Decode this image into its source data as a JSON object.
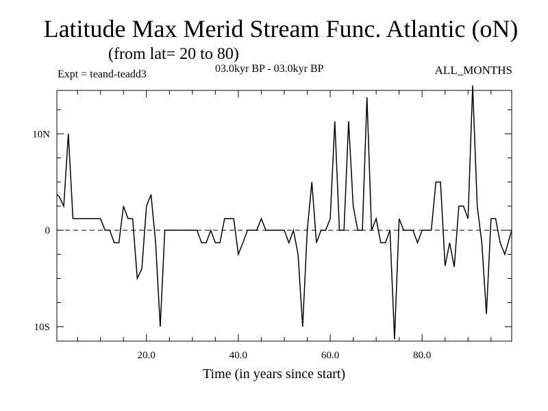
{
  "chart_data": {
    "type": "line",
    "title": "Latitude Max Merid Stream Func. Atlantic (oN)",
    "subtitle": "(from lat= 20 to 80)",
    "annotations": {
      "experiment": "Expt = teand-teadd3",
      "period": "03.0kyr BP - 03.0kyr BP",
      "months": "ALL_MONTHS"
    },
    "xlabel": "Time (in years since start)",
    "ylabel": "",
    "xlim": [
      0.5,
      99.5
    ],
    "ylim": [
      -11.5,
      14.5
    ],
    "xticks": [
      {
        "value": 20,
        "label": "20.0"
      },
      {
        "value": 40,
        "label": "40.0"
      },
      {
        "value": 60,
        "label": "60.0"
      },
      {
        "value": 80,
        "label": "80.0"
      }
    ],
    "yticks": [
      {
        "value": 10,
        "label": "10N"
      },
      {
        "value": 0,
        "label": "0"
      },
      {
        "value": -10,
        "label": "10S"
      }
    ],
    "zero_line": "dashed",
    "series": [
      {
        "name": "Latitude Max Merid Stream Func",
        "x": [
          0.5,
          1,
          2,
          3,
          4,
          5,
          6,
          7,
          8,
          9,
          10,
          11,
          12,
          13,
          14,
          15,
          16,
          17,
          18,
          19,
          20,
          21,
          22,
          23,
          24,
          25,
          26,
          27,
          28,
          29,
          30,
          31,
          32,
          33,
          34,
          35,
          36,
          37,
          38,
          39,
          40,
          41,
          42,
          43,
          44,
          45,
          46,
          47,
          48,
          49,
          50,
          51,
          52,
          53,
          54,
          55,
          56,
          57,
          58,
          59,
          60,
          61,
          62,
          63,
          64,
          65,
          66,
          67,
          68,
          69,
          70,
          71,
          72,
          73,
          74,
          75,
          76,
          77,
          78,
          79,
          80,
          81,
          82,
          83,
          84,
          85,
          86,
          87,
          88,
          89,
          90,
          91,
          92,
          93,
          94,
          95,
          96,
          97,
          98,
          99.5
        ],
        "values": [
          3.7,
          3.5,
          2.5,
          10,
          1.2,
          1.2,
          1.2,
          1.2,
          1.2,
          1.2,
          1.2,
          0,
          0,
          -1.3,
          -1.3,
          2.5,
          1.2,
          1.2,
          -5,
          -4,
          2.5,
          3.7,
          -1.3,
          -10,
          0,
          0,
          0,
          0,
          0,
          0,
          0,
          0,
          -1.3,
          -1.3,
          0,
          -1.3,
          -1.3,
          1.2,
          1.2,
          1.2,
          -2.5,
          -1.3,
          0,
          0,
          0,
          1.2,
          0,
          0,
          0,
          0,
          0,
          -1.3,
          0,
          -2.5,
          -10,
          0,
          5,
          -1.3,
          0,
          0,
          1.2,
          11.3,
          0,
          0,
          11.3,
          2.5,
          0,
          0,
          13.8,
          0,
          1.2,
          -1.3,
          -1.3,
          0,
          -11.3,
          1.2,
          0,
          0,
          0,
          -1.3,
          0,
          0,
          0,
          5,
          5,
          -3.7,
          -1.3,
          -3.8,
          2.5,
          2.5,
          1.2,
          15,
          2.5,
          -1.3,
          -8.7,
          1.2,
          1.2,
          -1.3,
          -2.5,
          0
        ]
      }
    ]
  }
}
